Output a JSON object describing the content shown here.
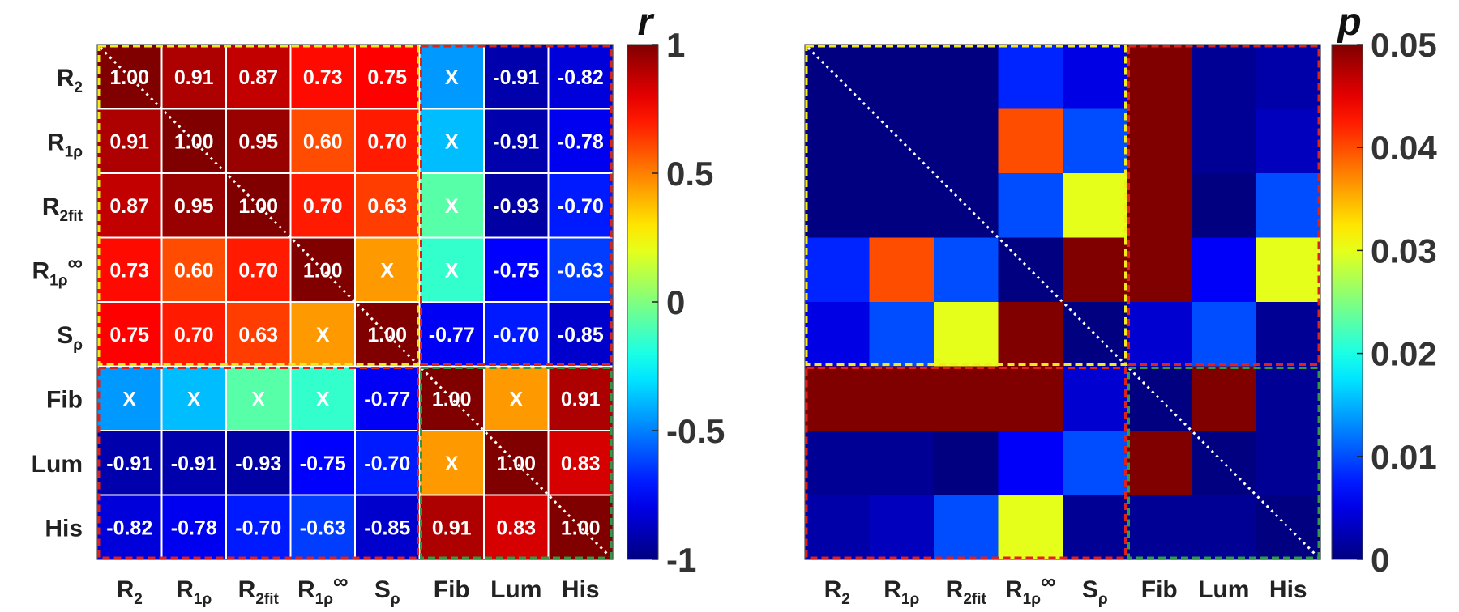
{
  "chart_data": [
    {
      "type": "heatmap",
      "title": "",
      "colorbar_label": "r",
      "colorbar_ticks": [
        "1",
        "0.5",
        "0",
        "-0.5",
        "-1"
      ],
      "clim": [
        -1,
        1
      ],
      "colormap": "jet",
      "row_labels": [
        {
          "main": "R",
          "sub": "2",
          "sup": ""
        },
        {
          "main": "R",
          "sub": "1ρ",
          "sup": ""
        },
        {
          "main": "R",
          "sub": "2fit",
          "sup": ""
        },
        {
          "main": "R",
          "sub": "1ρ",
          "sup": "∞"
        },
        {
          "main": "S",
          "sub": "ρ",
          "sup": ""
        },
        {
          "main": "Fib",
          "sub": "",
          "sup": ""
        },
        {
          "main": "Lum",
          "sub": "",
          "sup": ""
        },
        {
          "main": "His",
          "sub": "",
          "sup": ""
        }
      ],
      "col_labels": [
        {
          "main": "R",
          "sub": "2",
          "sup": ""
        },
        {
          "main": "R",
          "sub": "1ρ",
          "sup": ""
        },
        {
          "main": "R",
          "sub": "2fit",
          "sup": ""
        },
        {
          "main": "R",
          "sub": "1ρ",
          "sup": "∞"
        },
        {
          "main": "S",
          "sub": "ρ",
          "sup": ""
        },
        {
          "main": "Fib",
          "sub": "",
          "sup": ""
        },
        {
          "main": "Lum",
          "sub": "",
          "sup": ""
        },
        {
          "main": "His",
          "sub": "",
          "sup": ""
        }
      ],
      "values": [
        [
          1.0,
          0.91,
          0.87,
          0.73,
          0.75,
          -0.45,
          -0.91,
          -0.82
        ],
        [
          0.91,
          1.0,
          0.95,
          0.6,
          0.7,
          -0.38,
          -0.91,
          -0.78
        ],
        [
          0.87,
          0.95,
          1.0,
          0.7,
          0.63,
          -0.08,
          -0.93,
          -0.7
        ],
        [
          0.73,
          0.6,
          0.7,
          1.0,
          0.45,
          -0.15,
          -0.75,
          -0.63
        ],
        [
          0.75,
          0.7,
          0.63,
          0.45,
          1.0,
          -0.77,
          -0.7,
          -0.85
        ],
        [
          -0.45,
          -0.38,
          -0.08,
          -0.15,
          -0.77,
          1.0,
          0.45,
          0.91
        ],
        [
          -0.91,
          -0.91,
          -0.93,
          -0.75,
          -0.7,
          0.45,
          1.0,
          0.83
        ],
        [
          -0.82,
          -0.78,
          -0.7,
          -0.63,
          -0.85,
          0.91,
          0.83,
          1.0
        ]
      ],
      "cell_labels": [
        [
          "1.00",
          "0.91",
          "0.87",
          "0.73",
          "0.75",
          "X",
          "-0.91",
          "-0.82"
        ],
        [
          "0.91",
          "1.00",
          "0.95",
          "0.60",
          "0.70",
          "X",
          "-0.91",
          "-0.78"
        ],
        [
          "0.87",
          "0.95",
          "1.00",
          "0.70",
          "0.63",
          "X",
          "-0.93",
          "-0.70"
        ],
        [
          "0.73",
          "0.60",
          "0.70",
          "1.00",
          "X",
          "X",
          "-0.75",
          "-0.63"
        ],
        [
          "0.75",
          "0.70",
          "0.63",
          "X",
          "1.00",
          "-0.77",
          "-0.70",
          "-0.85"
        ],
        [
          "X",
          "X",
          "X",
          "X",
          "-0.77",
          "1.00",
          "X",
          "0.91"
        ],
        [
          "-0.91",
          "-0.91",
          "-0.93",
          "-0.75",
          "-0.70",
          "X",
          "1.00",
          "0.83"
        ],
        [
          "-0.82",
          "-0.78",
          "-0.70",
          "-0.63",
          "-0.85",
          "0.91",
          "0.83",
          "1.00"
        ]
      ],
      "blocks": [
        {
          "rows": [
            0,
            4
          ],
          "cols": [
            0,
            4
          ],
          "color": "#f2ea1b"
        },
        {
          "rows": [
            0,
            4
          ],
          "cols": [
            5,
            7
          ],
          "color": "#e0201b"
        },
        {
          "rows": [
            5,
            7
          ],
          "cols": [
            0,
            4
          ],
          "color": "#e0201b"
        },
        {
          "rows": [
            5,
            7
          ],
          "cols": [
            5,
            7
          ],
          "color": "#2e9a43"
        }
      ],
      "grid": true,
      "diagonal_line": true
    },
    {
      "type": "heatmap",
      "title": "",
      "colorbar_label": "p",
      "colorbar_ticks": [
        "0.05",
        "0.04",
        "0.03",
        "0.02",
        "0.01",
        "0"
      ],
      "clim": [
        0,
        0.05
      ],
      "colormap": "jet",
      "row_labels": [],
      "col_labels": [
        {
          "main": "R",
          "sub": "2",
          "sup": ""
        },
        {
          "main": "R",
          "sub": "1ρ",
          "sup": ""
        },
        {
          "main": "R",
          "sub": "2fit",
          "sup": ""
        },
        {
          "main": "R",
          "sub": "1ρ",
          "sup": "∞"
        },
        {
          "main": "S",
          "sub": "ρ",
          "sup": ""
        },
        {
          "main": "Fib",
          "sub": "",
          "sup": ""
        },
        {
          "main": "Lum",
          "sub": "",
          "sup": ""
        },
        {
          "main": "His",
          "sub": "",
          "sup": ""
        }
      ],
      "values": [
        [
          0.0,
          0.0,
          0.0,
          0.008,
          0.005,
          0.05,
          0.001,
          0.002
        ],
        [
          0.0,
          0.0,
          0.0,
          0.04,
          0.01,
          0.05,
          0.001,
          0.003
        ],
        [
          0.0,
          0.0,
          0.0,
          0.01,
          0.03,
          0.05,
          0.0,
          0.01
        ],
        [
          0.008,
          0.04,
          0.01,
          0.0,
          0.05,
          0.05,
          0.006,
          0.03
        ],
        [
          0.005,
          0.01,
          0.03,
          0.05,
          0.0,
          0.004,
          0.01,
          0.001
        ],
        [
          0.05,
          0.05,
          0.05,
          0.05,
          0.004,
          0.0,
          0.05,
          0.001
        ],
        [
          0.001,
          0.001,
          0.0,
          0.006,
          0.01,
          0.05,
          0.0,
          0.001
        ],
        [
          0.002,
          0.003,
          0.01,
          0.03,
          0.001,
          0.001,
          0.001,
          0.0
        ]
      ],
      "blocks": [
        {
          "rows": [
            0,
            4
          ],
          "cols": [
            0,
            4
          ],
          "color": "#f2ea1b"
        },
        {
          "rows": [
            0,
            4
          ],
          "cols": [
            5,
            7
          ],
          "color": "#e0201b"
        },
        {
          "rows": [
            5,
            7
          ],
          "cols": [
            0,
            4
          ],
          "color": "#e0201b"
        },
        {
          "rows": [
            5,
            7
          ],
          "cols": [
            5,
            7
          ],
          "color": "#2e9a43"
        }
      ],
      "grid": false,
      "diagonal_line": true
    }
  ]
}
